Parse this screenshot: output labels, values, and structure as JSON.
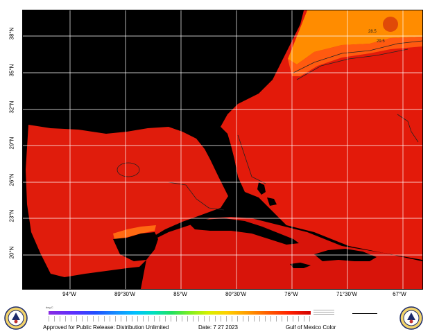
{
  "map": {
    "lat_labels": [
      "38°N",
      "35°N",
      "32°N",
      "29°N",
      "26°N",
      "23°N",
      "20°N"
    ],
    "lon_labels": [
      "94°W",
      "89°30'W",
      "85°W",
      "80°30'W",
      "76°W",
      "71°30'W",
      "67°W"
    ],
    "contour_labels": [
      "28.5",
      "29.5"
    ],
    "colors": {
      "land": "#000000",
      "sea_warm": "#e31a0a",
      "sea_warmer": "#cc0c06",
      "sea_cool": "#ff8c00",
      "sea_mid": "#ff5a10",
      "grid": "#ffffff"
    }
  },
  "colorbar": {
    "label": "deg C",
    "gradient": [
      "#8a2be2",
      "#2050ff",
      "#00c0ff",
      "#20e060",
      "#d8f000",
      "#ffd000",
      "#ff9a00",
      "#ff2000",
      "#d00000"
    ]
  },
  "footer": {
    "release": "Approved for Public Release: Distribution Unlimited",
    "date": "Date: 7 27 2023",
    "title": "Gulf of Mexico Color"
  },
  "logos": [
    "seal-icon-left",
    "seal-icon-right"
  ]
}
